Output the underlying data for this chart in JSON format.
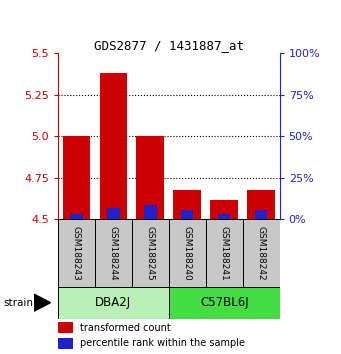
{
  "title": "GDS2877 / 1431887_at",
  "samples": [
    "GSM188243",
    "GSM188244",
    "GSM188245",
    "GSM188240",
    "GSM188241",
    "GSM188242"
  ],
  "groups": [
    {
      "name": "DBA2J",
      "samples": [
        0,
        1,
        2
      ]
    },
    {
      "name": "C57BL6J",
      "samples": [
        3,
        4,
        5
      ]
    }
  ],
  "red_values": [
    5.0,
    5.38,
    5.0,
    4.68,
    4.62,
    4.68
  ],
  "blue_values": [
    4.535,
    4.57,
    4.585,
    4.555,
    4.535,
    4.555
  ],
  "base": 4.5,
  "ylim": [
    4.5,
    5.5
  ],
  "yticks_left": [
    4.5,
    4.75,
    5.0,
    5.25,
    5.5
  ],
  "yticks_right": [
    0,
    25,
    50,
    75,
    100
  ],
  "bar_width": 0.75,
  "red_color": "#cc0000",
  "blue_color": "#2222cc",
  "label_color_red": "#cc0000",
  "label_color_blue": "#2222cc",
  "sample_box_color": "#c8c8c8",
  "group_color_1": "#b8f0b8",
  "group_color_2": "#44dd44",
  "legend_red": "transformed count",
  "legend_blue": "percentile rank within the sample",
  "strain_label": "strain"
}
